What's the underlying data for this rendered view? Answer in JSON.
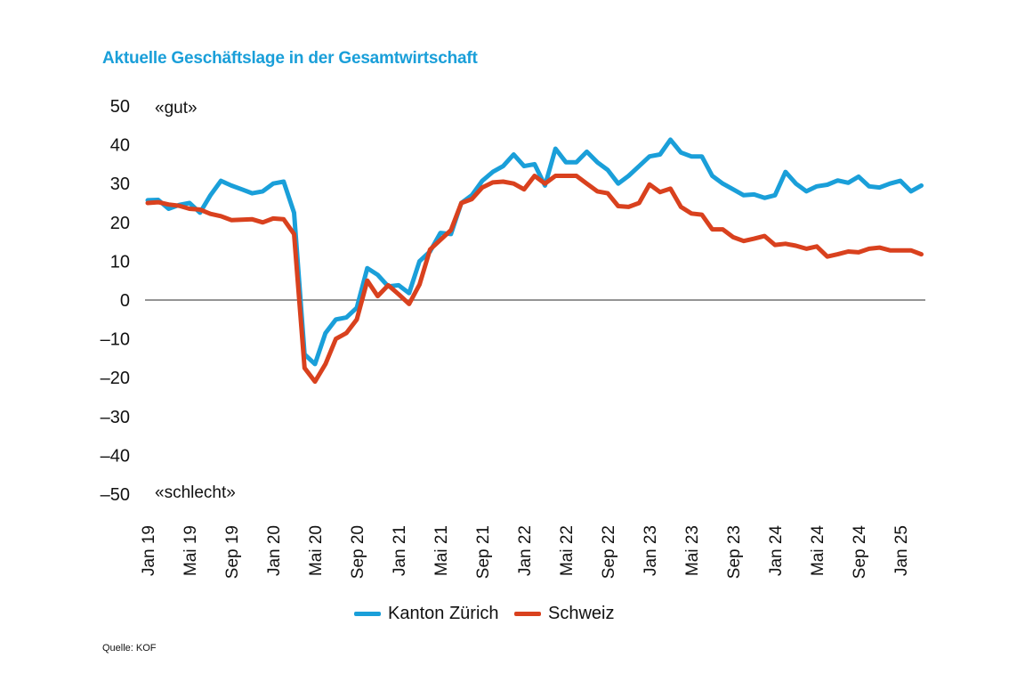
{
  "title": "Aktuelle Geschäftslage in der Gesamtwirtschaft",
  "source": "Quelle: KOF",
  "chart_data": {
    "type": "line",
    "title": "Aktuelle Geschäftslage in der Gesamtwirtschaft",
    "xlabel": "",
    "ylabel": "",
    "ylim": [
      -50,
      50
    ],
    "yticks": [
      "50",
      "40",
      "30",
      "20",
      "10",
      "0",
      "–10",
      "–20",
      "–30",
      "–40",
      "–50"
    ],
    "ytick_values": [
      50,
      40,
      30,
      20,
      10,
      0,
      -10,
      -20,
      -30,
      -40,
      -50
    ],
    "annotations": {
      "top": "«gut»",
      "bottom": "«schlecht»"
    },
    "xtick_labels": [
      "Jan 19",
      "Mai 19",
      "Sep 19",
      "Jan 20",
      "Mai 20",
      "Sep 20",
      "Jan 21",
      "Mai 21",
      "Sep 21",
      "Jan 22",
      "Mai 22",
      "Sep 22",
      "Jan 23",
      "Mai 23",
      "Sep 23",
      "Jan 24",
      "Mai 24",
      "Sep 24",
      "Jan 25"
    ],
    "x": [
      "Jan 19",
      "Feb 19",
      "Mär 19",
      "Apr 19",
      "Mai 19",
      "Jun 19",
      "Jul 19",
      "Aug 19",
      "Sep 19",
      "Okt 19",
      "Nov 19",
      "Dez 19",
      "Jan 20",
      "Feb 20",
      "Mär 20",
      "Apr 20",
      "Mai 20",
      "Jun 20",
      "Jul 20",
      "Aug 20",
      "Sep 20",
      "Okt 20",
      "Nov 20",
      "Dez 20",
      "Jan 21",
      "Feb 21",
      "Mär 21",
      "Apr 21",
      "Mai 21",
      "Jun 21",
      "Jul 21",
      "Aug 21",
      "Sep 21",
      "Okt 21",
      "Nov 21",
      "Dez 21",
      "Jan 22",
      "Feb 22",
      "Mär 22",
      "Apr 22",
      "Mai 22",
      "Jun 22",
      "Jul 22",
      "Aug 22",
      "Sep 22",
      "Okt 22",
      "Nov 22",
      "Dez 22",
      "Jan 23",
      "Feb 23",
      "Mär 23",
      "Apr 23",
      "Mai 23",
      "Jun 23",
      "Jul 23",
      "Aug 23",
      "Sep 23",
      "Okt 23",
      "Nov 23",
      "Dez 23",
      "Jan 24",
      "Feb 24",
      "Mär 24",
      "Apr 24",
      "Mai 24",
      "Jun 24",
      "Jul 24",
      "Aug 24",
      "Sep 24",
      "Okt 24",
      "Nov 24",
      "Dez 24",
      "Jan 25",
      "Feb 25",
      "Mär 25"
    ],
    "grid": false,
    "legend_position": "bottom",
    "series": [
      {
        "name": "Kanton Zürich",
        "color": "#1a9fd9",
        "values": [
          25.7,
          25.8,
          23.5,
          24.5,
          25,
          22.5,
          27,
          30.7,
          29.5,
          28.5,
          27.5,
          28,
          30,
          30.5,
          22.5,
          -14,
          -16.5,
          -8.5,
          -5,
          -4.5,
          -2,
          8.2,
          6.5,
          3.5,
          3.8,
          1.8,
          10,
          12.5,
          17.3,
          17,
          25,
          27,
          30.7,
          33,
          34.5,
          37.5,
          34.5,
          35,
          29.5,
          39,
          35.5,
          35.5,
          38.2,
          35.5,
          33.5,
          30,
          32,
          34.5,
          37,
          37.5,
          41.3,
          38,
          37,
          37,
          32,
          30,
          28.5,
          27,
          27.2,
          26.3,
          27,
          33,
          30,
          28,
          29.3,
          29.7,
          30.8,
          30.2,
          31.8,
          29.3,
          29,
          30,
          30.7,
          28,
          29.5
        ]
      },
      {
        "name": "Schweiz",
        "color": "#d9411e",
        "values": [
          25,
          25.2,
          24.6,
          24.3,
          23.5,
          23.3,
          22.2,
          21.6,
          20.6,
          20.7,
          20.8,
          20,
          21,
          20.8,
          17,
          -17.5,
          -21,
          -16.5,
          -10,
          -8.5,
          -5,
          5,
          1,
          3.8,
          1.5,
          -1,
          4,
          13,
          15.5,
          18,
          25,
          26,
          29,
          30.3,
          30.5,
          30,
          28.5,
          32,
          30,
          32,
          32,
          32,
          30,
          28,
          27.5,
          24.2,
          24,
          25,
          29.8,
          27.8,
          28.7,
          24,
          22.3,
          22,
          18.2,
          18.2,
          16.2,
          15.2,
          15.8,
          16.5,
          14.2,
          14.5,
          14,
          13.2,
          13.8,
          11.2,
          11.8,
          12.5,
          12.3,
          13.2,
          13.5,
          12.8,
          12.8,
          12.8,
          11.8
        ]
      }
    ]
  }
}
